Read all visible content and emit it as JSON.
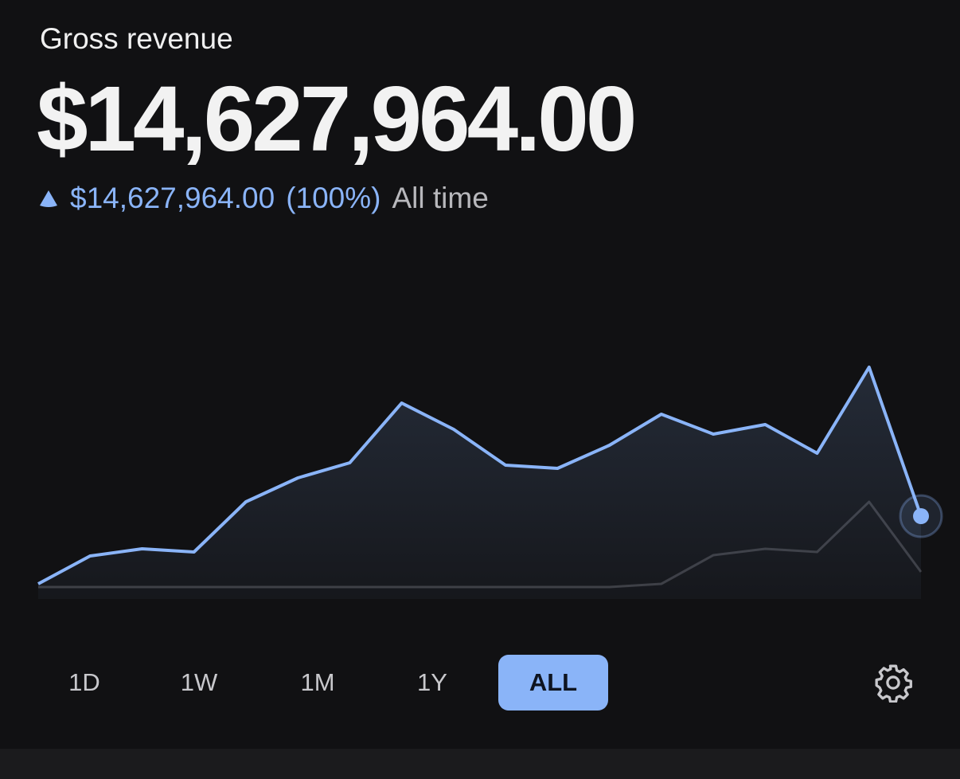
{
  "header": {
    "title": "Gross revenue",
    "amount": "$14,627,964.00"
  },
  "change": {
    "amount": "$14,627,964.00",
    "percent": "(100%)",
    "period": "All time"
  },
  "chart": {
    "type": "line",
    "ylim": [
      0,
      300
    ],
    "series": [
      {
        "color": "#8ab4f8",
        "values": [
          4,
          39,
          48,
          44,
          107,
          137,
          156,
          231,
          198,
          153,
          149,
          178,
          217,
          192,
          204,
          168,
          276,
          89
        ]
      },
      {
        "color": "#3a3a3e",
        "values": [
          0,
          0,
          0,
          0,
          0,
          0,
          0,
          0,
          0,
          0,
          0,
          0,
          4,
          40,
          48,
          44,
          107,
          19
        ]
      }
    ]
  },
  "range_buttons": [
    {
      "label": "1D",
      "selected": false
    },
    {
      "label": "1W",
      "selected": false
    },
    {
      "label": "1M",
      "selected": false
    },
    {
      "label": "1Y",
      "selected": false
    },
    {
      "label": "ALL",
      "selected": true
    }
  ]
}
